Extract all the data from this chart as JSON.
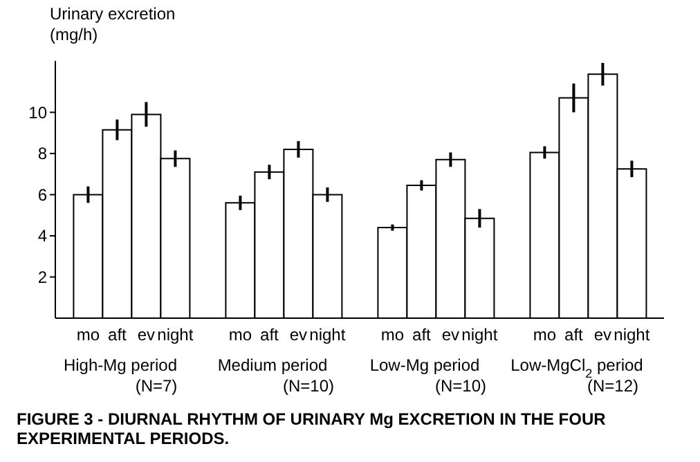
{
  "chart_data": {
    "type": "bar",
    "title": "FIGURE 3 - DIURNAL RHYTHM OF URINARY Mg EXCRETION IN THE FOUR EXPERIMENTAL PERIODS.",
    "ylabel": "Urinary excretion\n(mg/h)",
    "categories": [
      "High-Mg period\n(N=7)",
      "Medium period\n(N=10)",
      "Low-Mg period\n(N=10)",
      "Low-MgCl$_{2}$ period\n(N=12)"
    ],
    "series": [
      {
        "name": "mo",
        "color": "#ffffff",
        "values": [
          6.0,
          5.6,
          4.4,
          8.05
        ],
        "errors": [
          0.4,
          0.35,
          0.15,
          0.3
        ]
      },
      {
        "name": "aft",
        "color": "#ffffff",
        "values": [
          9.15,
          7.1,
          6.45,
          10.7
        ],
        "errors": [
          0.5,
          0.35,
          0.25,
          0.7
        ]
      },
      {
        "name": "ev",
        "color": "#ffffff",
        "values": [
          9.9,
          8.2,
          7.7,
          11.85
        ],
        "errors": [
          0.6,
          0.4,
          0.35,
          0.55
        ]
      },
      {
        "name": "night",
        "color": "#ffffff",
        "values": [
          7.75,
          6.0,
          4.85,
          7.25
        ],
        "errors": [
          0.4,
          0.35,
          0.45,
          0.4
        ]
      }
    ],
    "ylim": [
      0,
      12.5
    ],
    "yticks": [
      2,
      4,
      6,
      8,
      10
    ],
    "grid": false,
    "legend": false
  }
}
